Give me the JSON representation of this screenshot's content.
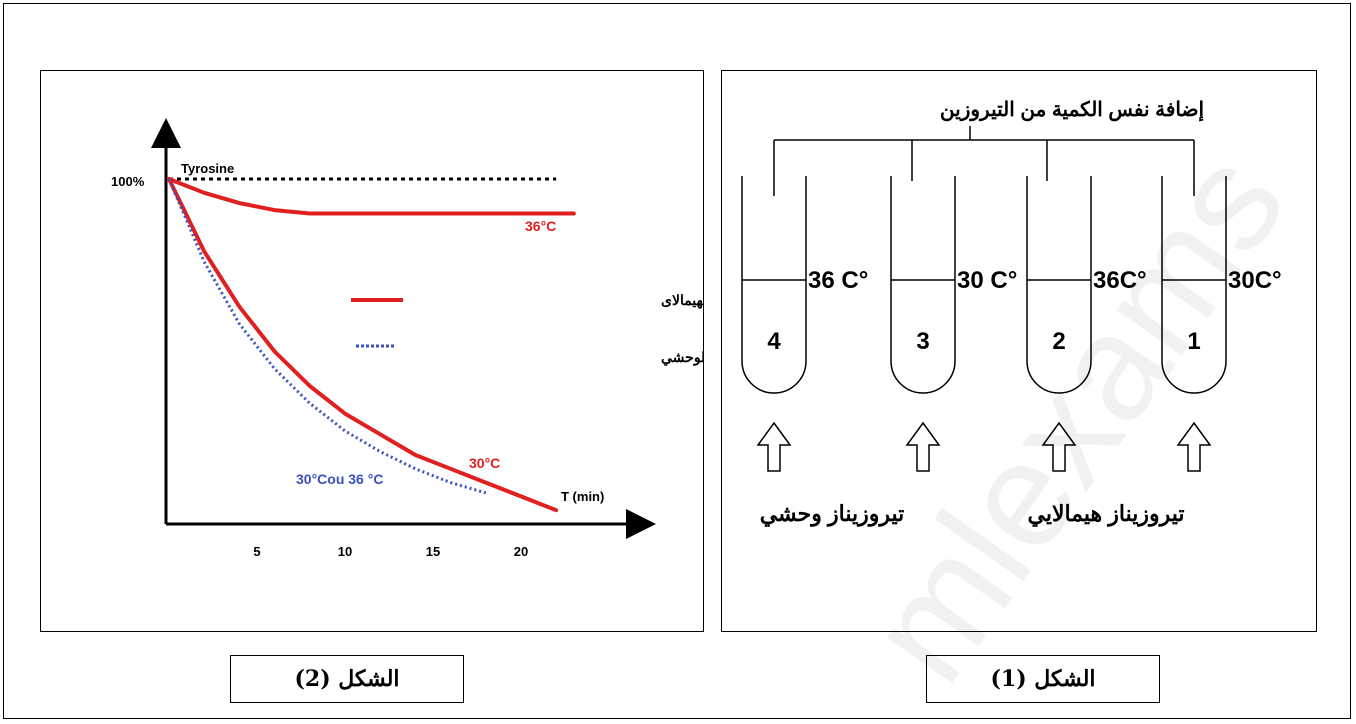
{
  "figure1": {
    "caption": "الشكل (1)",
    "header": "إضافة نفس الكمية من التيروزين",
    "tubes": [
      {
        "number": "1",
        "temperature": "30C°"
      },
      {
        "number": "2",
        "temperature": "36C°"
      },
      {
        "number": "3",
        "temperature": "30 C°"
      },
      {
        "number": "4",
        "temperature": "36 C°"
      }
    ],
    "label_himalayan": "تيروزيناز هيمالايي",
    "label_wild": "تيروزيناز وحشي"
  },
  "figure2": {
    "caption": "الشكل (2)"
  },
  "chart_data": {
    "type": "line",
    "ylabel": "Tyrosine",
    "xlabel": "T (min)",
    "y_tick_label": "100%",
    "x_ticks": [
      "5",
      "10",
      "15",
      "20"
    ],
    "xlim": [
      0,
      25
    ],
    "ylim": [
      0,
      100
    ],
    "reference_line": {
      "y": 100,
      "style": "dotted",
      "color": "#000000"
    },
    "series": [
      {
        "name": "انزيم التيروزيناز عند ارنب الهيمالاى",
        "condition": "36°C",
        "color": "#e02020",
        "style": "solid",
        "points": [
          [
            0,
            100
          ],
          [
            2,
            96
          ],
          [
            4,
            93
          ],
          [
            6,
            91
          ],
          [
            8,
            90
          ],
          [
            10,
            90
          ],
          [
            12,
            90
          ],
          [
            15,
            90
          ],
          [
            18,
            90
          ],
          [
            20,
            90
          ],
          [
            23,
            90
          ]
        ]
      },
      {
        "name": "انزيم التيروزيناز عند ارنب الهيمالاى",
        "condition": "30°C",
        "color": "#e02020",
        "style": "solid",
        "points": [
          [
            0,
            100
          ],
          [
            2,
            79
          ],
          [
            4,
            63
          ],
          [
            6,
            50
          ],
          [
            8,
            40
          ],
          [
            10,
            32
          ],
          [
            12,
            26
          ],
          [
            14,
            20
          ],
          [
            16,
            16
          ],
          [
            18,
            12
          ],
          [
            20,
            8
          ],
          [
            22,
            4
          ]
        ]
      },
      {
        "name": "انزيم التيروزيناز عند الارنب الوحشي",
        "condition": "30°Cou 36 °C",
        "color": "#3a50c0",
        "style": "dotted",
        "points": [
          [
            0,
            100
          ],
          [
            2,
            76
          ],
          [
            4,
            58
          ],
          [
            6,
            45
          ],
          [
            8,
            35
          ],
          [
            10,
            27
          ],
          [
            12,
            21
          ],
          [
            14,
            16
          ],
          [
            16,
            12
          ],
          [
            18,
            9
          ]
        ]
      }
    ],
    "annotations": [
      "36°C",
      "30°C",
      "30°Cou 36 °C"
    ],
    "legend": [
      {
        "label": "انزيم التيروزيناز عند ارنب الهيمالاى",
        "color": "#e02020",
        "style": "solid"
      },
      {
        "label": "انزيم التيروزيناز عند الارنب الوحشي",
        "color": "#3a50c0",
        "style": "dotted"
      }
    ],
    "legend_position": "center-right",
    "grid": false
  },
  "watermark": "mlexams"
}
